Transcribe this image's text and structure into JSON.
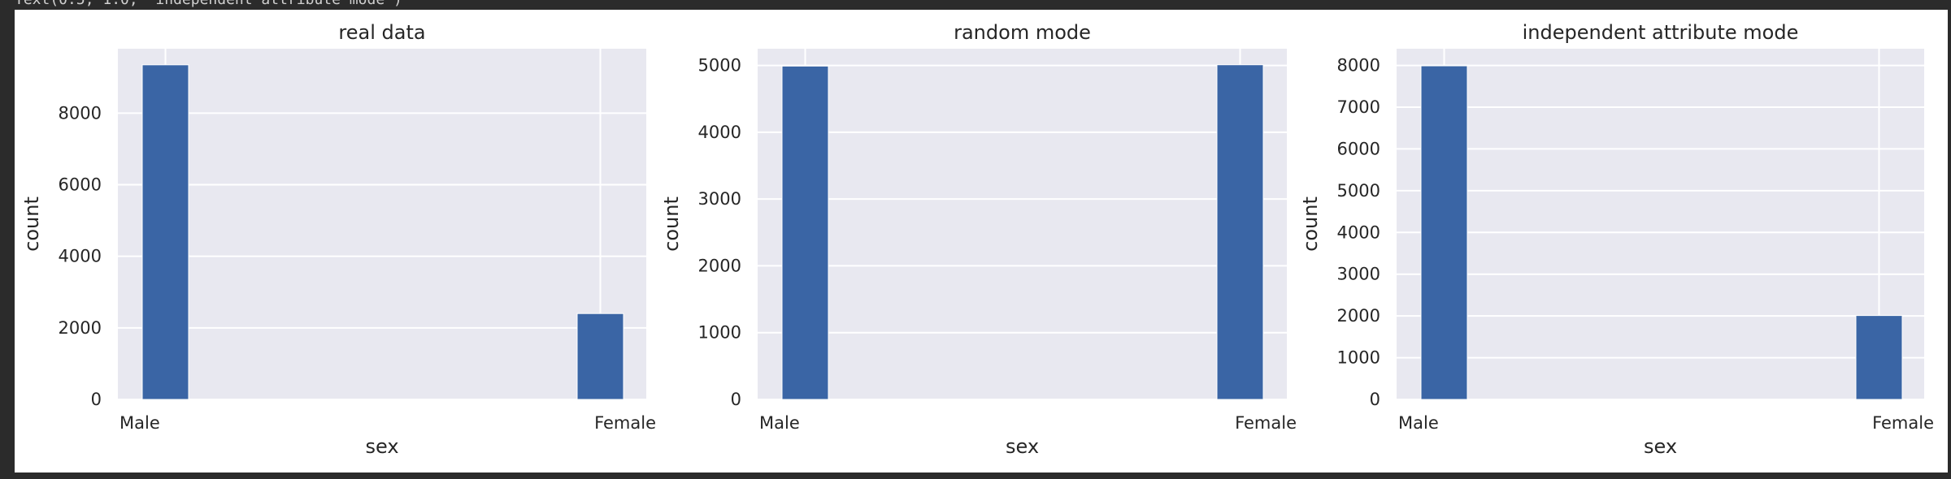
{
  "header": {
    "output_text": "Text(0.5, 1.0, 'independent attribute mode')"
  },
  "colors": {
    "bar": "#3a65a5",
    "axes_bg": "#e8e8f0",
    "grid": "#ffffff",
    "background": "#ffffff",
    "outer": "#2b2b2b"
  },
  "chart_data": [
    {
      "type": "bar",
      "title": "real data",
      "xlabel": "sex",
      "ylabel": "count",
      "categories": [
        "Male",
        "Female"
      ],
      "values": [
        9350,
        2400
      ],
      "ylim": [
        0,
        9800
      ],
      "yticks": [
        0,
        2000,
        4000,
        6000,
        8000
      ],
      "grid": true
    },
    {
      "type": "bar",
      "title": "random mode",
      "xlabel": "sex",
      "ylabel": "count",
      "categories": [
        "Male",
        "Female"
      ],
      "values": [
        4990,
        5010
      ],
      "ylim": [
        0,
        5250
      ],
      "yticks": [
        0,
        1000,
        2000,
        3000,
        4000,
        5000
      ],
      "grid": true
    },
    {
      "type": "bar",
      "title": "independent attribute mode",
      "xlabel": "sex",
      "ylabel": "count",
      "categories": [
        "Male",
        "Female"
      ],
      "values": [
        7990,
        2010
      ],
      "ylim": [
        0,
        8400
      ],
      "yticks": [
        0,
        1000,
        2000,
        3000,
        4000,
        5000,
        6000,
        7000,
        8000
      ],
      "grid": true
    }
  ]
}
